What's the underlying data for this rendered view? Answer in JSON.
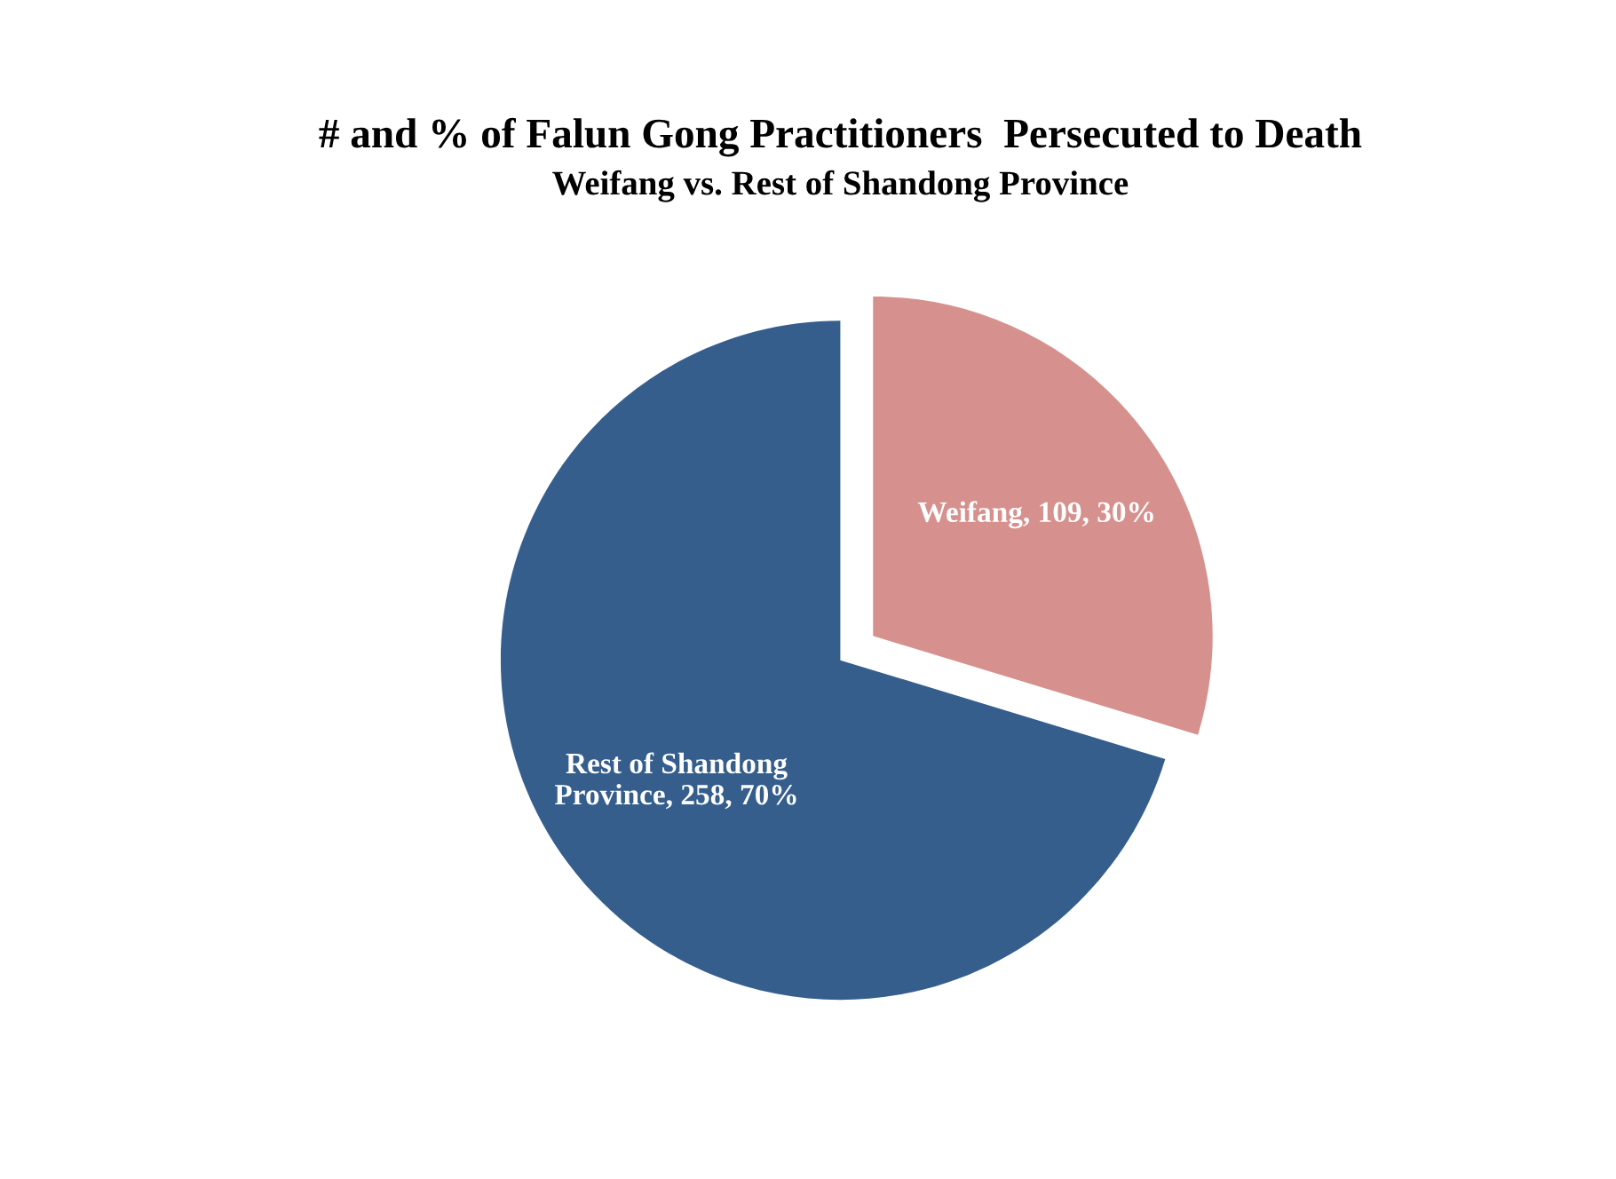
{
  "chart_data": {
    "type": "pie",
    "title": "# and % of Falun Gong Practitioners  Persecuted to Death",
    "subtitle": "Weifang vs. Rest of Shandong Province",
    "categories": [
      "Weifang",
      "Rest of Shandong Province"
    ],
    "values": [
      109,
      258
    ],
    "colors": [
      "#d6918e",
      "#355e8d"
    ],
    "value_labels": [
      "109, 30%",
      "258, 70%"
    ],
    "legend": false
  }
}
